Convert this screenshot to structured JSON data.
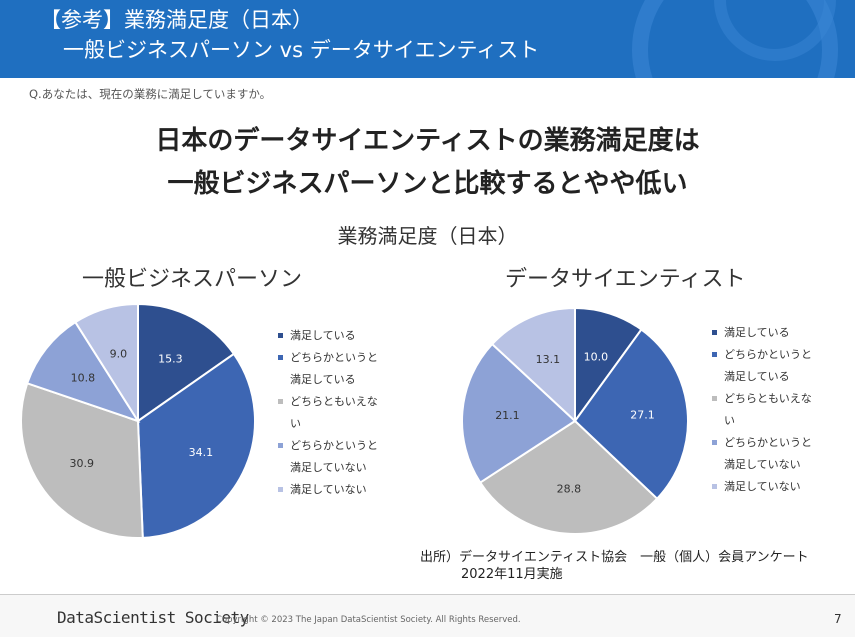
{
  "header": {
    "title_line1": "【参考】業務満足度（日本）",
    "title_line2": "一般ビジネスパーソン vs データサイエンティスト"
  },
  "question": "Q.あなたは、現在の業務に満足していますか。",
  "headline": {
    "line1": "日本のデータサイエンティストの業務満足度は",
    "line2": "一般ビジネスパーソンと比較するとやや低い"
  },
  "source": {
    "line1": "出所）データサイエンティスト協会　一般（個人）会員アンケート",
    "line2": "2022年11月実施"
  },
  "footer": {
    "logo": "DataScientist Society",
    "copyright": "Copyright © 2023 The Japan DataScientist Society. All Rights Reserved.",
    "page": "7"
  },
  "colors": [
    "#2e4f8f",
    "#3d66b3",
    "#bdbdbd",
    "#8da2d6",
    "#b8c2e4"
  ],
  "chart_data": [
    {
      "type": "pie",
      "title": "業務満足度（日本）",
      "subtitle": "一般ビジネスパーソン",
      "legend": [
        [
          "満足している"
        ],
        [
          "どちらかというと",
          "満足している"
        ],
        [
          "どちらともいえな",
          "い"
        ],
        [
          "どちらかというと",
          "満足していない"
        ],
        [
          "満足していない"
        ]
      ],
      "legend_position": "right",
      "values": [
        15.3,
        34.1,
        30.9,
        10.8,
        9.0
      ],
      "labels": [
        "15.3",
        "34.1",
        "30.9",
        "10.8",
        "9.0"
      ]
    },
    {
      "type": "pie",
      "subtitle": "データサイエンティスト",
      "legend": [
        [
          "満足している"
        ],
        [
          "どちらかというと",
          "満足している"
        ],
        [
          "どちらともいえな",
          "い"
        ],
        [
          "どちらかというと",
          "満足していない"
        ],
        [
          "満足していない"
        ]
      ],
      "legend_position": "right",
      "values": [
        10.0,
        27.1,
        28.8,
        21.1,
        13.1
      ],
      "labels": [
        "10.0",
        "27.1",
        "28.8",
        "21.1",
        "13.1"
      ]
    }
  ]
}
